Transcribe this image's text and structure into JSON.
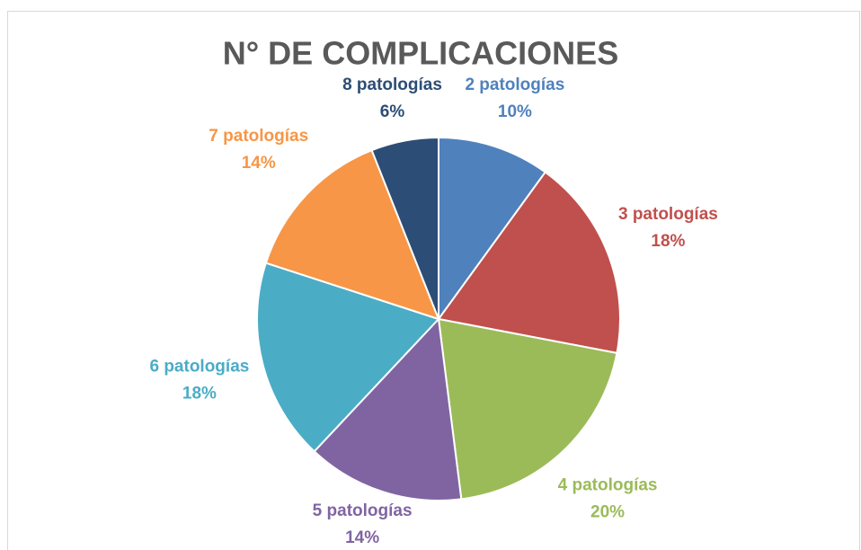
{
  "chart_data": {
    "type": "pie",
    "title": "N° DE COMPLICACIONES",
    "categories": [
      "2 patologías",
      "3 patologías",
      "4 patologías",
      "5 patologías",
      "6 patologías",
      "7 patologías",
      "8 patologías"
    ],
    "values": [
      10,
      18,
      20,
      14,
      18,
      14,
      6
    ],
    "value_labels": [
      "10%",
      "18%",
      "20%",
      "14%",
      "18%",
      "14%",
      "6%"
    ],
    "colors": [
      "#4f81bd",
      "#c0504d",
      "#9bbb59",
      "#8064a2",
      "#4bacc6",
      "#f79646",
      "#2c4d75"
    ]
  }
}
